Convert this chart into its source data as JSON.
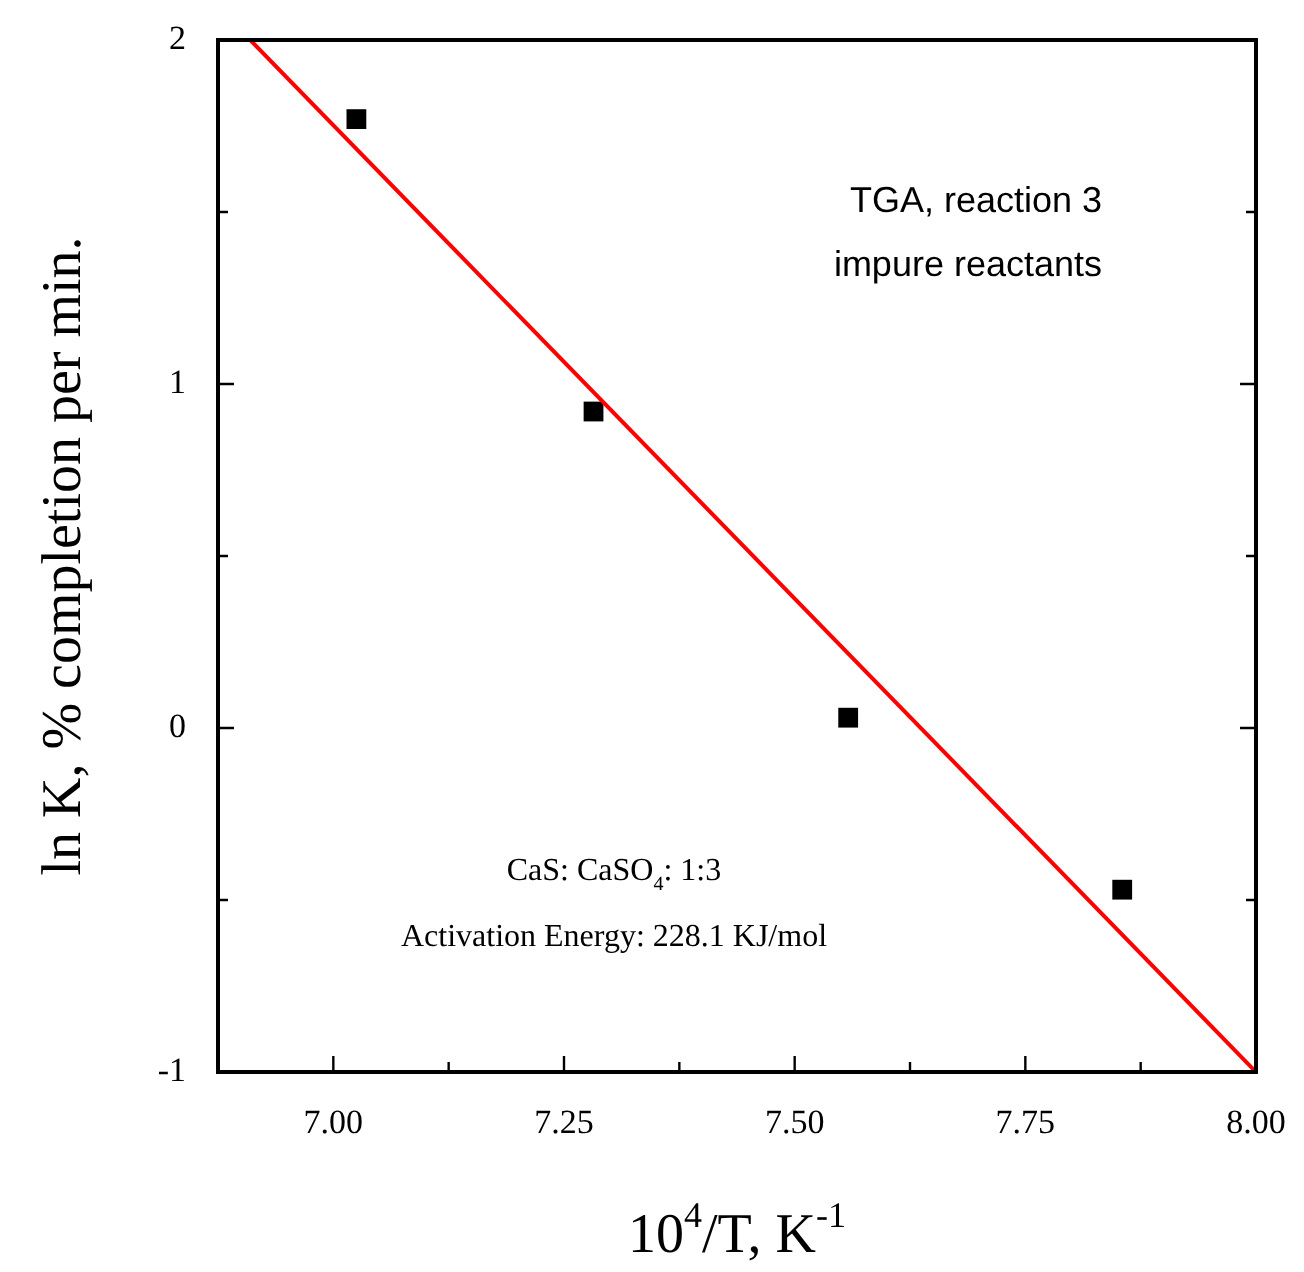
{
  "chart_data": {
    "type": "scatter",
    "xlabel": "10$^{4}$/T, K$^{-1}$",
    "ylabel": "ln K, % completion per min.",
    "annotations": [
      "TGA, reaction 3",
      "impure reactants",
      "CaS: CaSO$_{4}$: 1:3",
      "Activation Energy: 228.1 KJ/mol"
    ],
    "xlim": [
      6.875,
      8.0
    ],
    "ylim": [
      -1,
      2
    ],
    "xticks": [
      {
        "value": 7.0,
        "label": "7.00"
      },
      {
        "value": 7.125,
        "label": null
      },
      {
        "value": 7.25,
        "label": "7.25"
      },
      {
        "value": 7.375,
        "label": null
      },
      {
        "value": 7.5,
        "label": "7.50"
      },
      {
        "value": 7.625,
        "label": null
      },
      {
        "value": 7.75,
        "label": "7.75"
      },
      {
        "value": 7.875,
        "label": null
      },
      {
        "value": 8.0,
        "label": "8.00"
      }
    ],
    "yticks": [
      {
        "value": -1,
        "label": "-1"
      },
      {
        "value": -0.5,
        "label": null
      },
      0,
      {
        "value": 0.5,
        "label": null
      },
      1,
      {
        "value": 1.5,
        "label": null
      },
      2
    ],
    "series": [
      {
        "type": "scatter",
        "color": "#000000",
        "marker": "square",
        "x": [
          7.025,
          7.282,
          7.558,
          7.855
        ],
        "values": [
          1.77,
          0.92,
          0.03,
          -0.47
        ]
      },
      {
        "type": "line",
        "color": "#ff0000",
        "marker": "none",
        "line_style": "solid",
        "x": [
          6.91,
          8.0
        ],
        "values": [
          2,
          -1
        ]
      }
    ]
  }
}
